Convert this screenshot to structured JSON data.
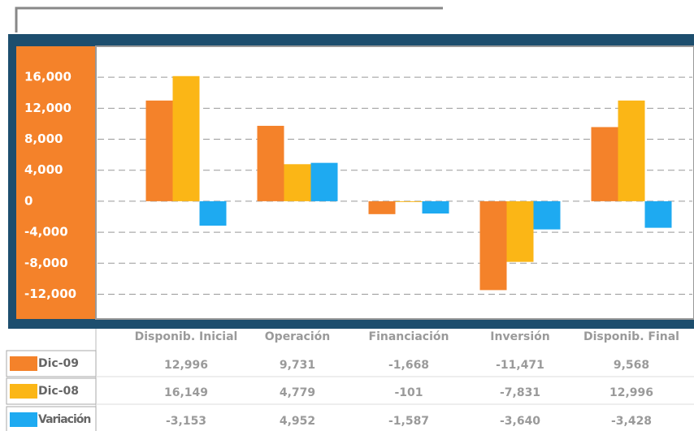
{
  "chart_data": {
    "type": "bar",
    "categories": [
      "Disponib. Inicial",
      "Operación",
      "Financiación",
      "Inversión",
      "Disponib. Final"
    ],
    "series": [
      {
        "name": "Dic-09",
        "color": "#f4822a",
        "values": [
          12996,
          9731,
          -1668,
          -11471,
          9568
        ],
        "value_labels": [
          "12,996",
          "9,731",
          "-1,668",
          "-11,471",
          "9,568"
        ]
      },
      {
        "name": "Dic-08",
        "color": "#fbb616",
        "values": [
          16149,
          4779,
          -101,
          -7831,
          12996
        ],
        "value_labels": [
          "16,149",
          "4,779",
          "-101",
          "-7,831",
          "12,996"
        ]
      },
      {
        "name": "Variación",
        "color": "#1eaaf1",
        "values": [
          -3153,
          4952,
          -1587,
          -3640,
          -3428
        ],
        "value_labels": [
          "-3,153",
          "4,952",
          "-1,587",
          "-3,640",
          "-3,428"
        ]
      }
    ],
    "ylim": [
      -15200,
      20000
    ],
    "yticks": [
      {
        "value": 16000,
        "label": "16,000"
      },
      {
        "value": 12000,
        "label": "12,000"
      },
      {
        "value": 8000,
        "label": "8,000"
      },
      {
        "value": 4000,
        "label": "4,000"
      },
      0,
      {
        "value": -4000,
        "label": "-4,000"
      },
      {
        "value": -8000,
        "label": "-8,000"
      },
      {
        "value": -12000,
        "label": "-12,000"
      }
    ],
    "grid": true
  }
}
